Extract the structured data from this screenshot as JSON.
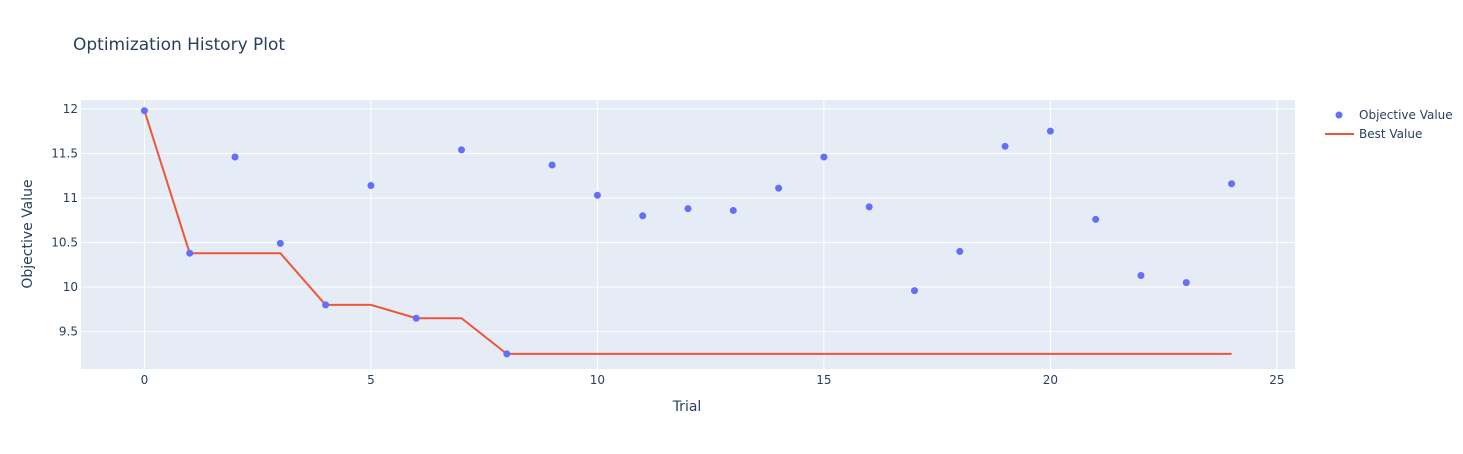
{
  "chart_data": {
    "type": "scatter",
    "title": "Optimization History Plot",
    "xlabel": "Trial",
    "ylabel": "Objective Value",
    "xlim": [
      -1.4,
      25.4
    ],
    "ylim": [
      9.08,
      12.1
    ],
    "x_ticks": [
      0,
      5,
      10,
      15,
      20,
      25
    ],
    "x_tick_labels": [
      "0",
      "5",
      "10",
      "15",
      "20",
      "25"
    ],
    "y_ticks": [
      9.5,
      10,
      10.5,
      11,
      11.5,
      12
    ],
    "y_tick_labels": [
      "9.5",
      "10",
      "10.5",
      "11",
      "11.5",
      "12"
    ],
    "grid": true,
    "legend_position": "top-right",
    "series": [
      {
        "name": "Objective Value",
        "mode": "markers",
        "color": "#636efa",
        "x": [
          0,
          1,
          2,
          3,
          4,
          5,
          6,
          7,
          8,
          9,
          10,
          11,
          12,
          13,
          14,
          15,
          16,
          17,
          18,
          19,
          20,
          21,
          22,
          23,
          24
        ],
        "y": [
          11.98,
          10.38,
          11.46,
          10.49,
          9.8,
          11.14,
          9.65,
          11.54,
          9.25,
          11.37,
          11.03,
          10.8,
          10.88,
          10.86,
          11.11,
          11.46,
          10.9,
          9.96,
          10.4,
          11.58,
          11.75,
          10.76,
          10.13,
          10.05,
          11.16
        ]
      },
      {
        "name": "Best Value",
        "mode": "lines",
        "color": "#ef553b",
        "x": [
          0,
          1,
          2,
          3,
          4,
          5,
          6,
          7,
          8,
          9,
          10,
          11,
          12,
          13,
          14,
          15,
          16,
          17,
          18,
          19,
          20,
          21,
          22,
          23,
          24
        ],
        "y": [
          11.98,
          10.38,
          10.38,
          10.38,
          9.8,
          9.8,
          9.65,
          9.65,
          9.25,
          9.25,
          9.25,
          9.25,
          9.25,
          9.25,
          9.25,
          9.25,
          9.25,
          9.25,
          9.25,
          9.25,
          9.25,
          9.25,
          9.25,
          9.25,
          9.25
        ]
      }
    ]
  }
}
